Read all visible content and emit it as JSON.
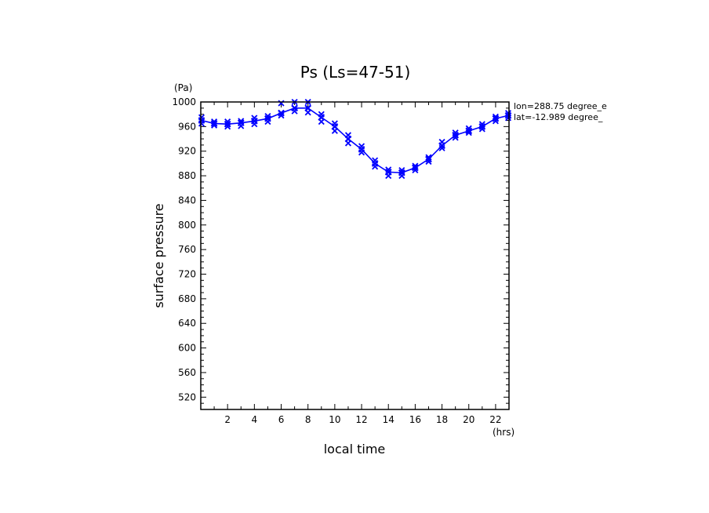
{
  "chart_data": {
    "type": "line",
    "title": "Ps (Ls=47-51)",
    "xlabel": "local time",
    "ylabel": "surface pressure",
    "x_unit": "(hrs)",
    "y_unit": "(Pa)",
    "xlim": [
      0,
      23
    ],
    "ylim": [
      500,
      1000
    ],
    "x_ticks": [
      2,
      4,
      6,
      8,
      10,
      12,
      14,
      16,
      18,
      20,
      22
    ],
    "y_ticks": [
      520,
      560,
      600,
      640,
      680,
      720,
      760,
      800,
      840,
      880,
      920,
      960,
      1000
    ],
    "grid": false,
    "annotations": [
      "lon=288.75 degree_e",
      "lat=-12.989 degree_"
    ],
    "series": [
      {
        "marker": "x",
        "color": "#0000ff",
        "x": [
          0,
          1,
          2,
          3,
          4,
          5,
          6,
          7,
          8,
          9,
          10,
          11,
          12,
          13,
          14,
          15,
          16,
          17,
          18,
          19,
          20,
          21,
          22,
          23
        ],
        "y": [
          970,
          965,
          964,
          966,
          969,
          973,
          982,
          990,
          990,
          975,
          960,
          940,
          923,
          900,
          886,
          885,
          893,
          907,
          929,
          946,
          953,
          960,
          973,
          978
        ]
      }
    ],
    "samples_per_hour": [
      [
        975,
        965,
        970
      ],
      [
        968,
        962,
        965
      ],
      [
        968,
        960,
        964
      ],
      [
        969,
        961,
        966
      ],
      [
        974,
        964,
        969
      ],
      [
        977,
        968,
        973
      ],
      [
        998,
        978,
        982
      ],
      [
        1000,
        985,
        990
      ],
      [
        1000,
        983,
        990
      ],
      [
        980,
        968,
        975
      ],
      [
        965,
        953,
        960
      ],
      [
        946,
        933,
        940
      ],
      [
        928,
        918,
        923
      ],
      [
        905,
        895,
        900
      ],
      [
        890,
        880,
        886
      ],
      [
        889,
        880,
        885
      ],
      [
        896,
        889,
        893
      ],
      [
        910,
        903,
        907
      ],
      [
        935,
        925,
        929
      ],
      [
        950,
        942,
        946
      ],
      [
        957,
        950,
        953
      ],
      [
        964,
        956,
        960
      ],
      [
        976,
        969,
        973
      ],
      [
        982,
        974,
        978
      ]
    ]
  }
}
